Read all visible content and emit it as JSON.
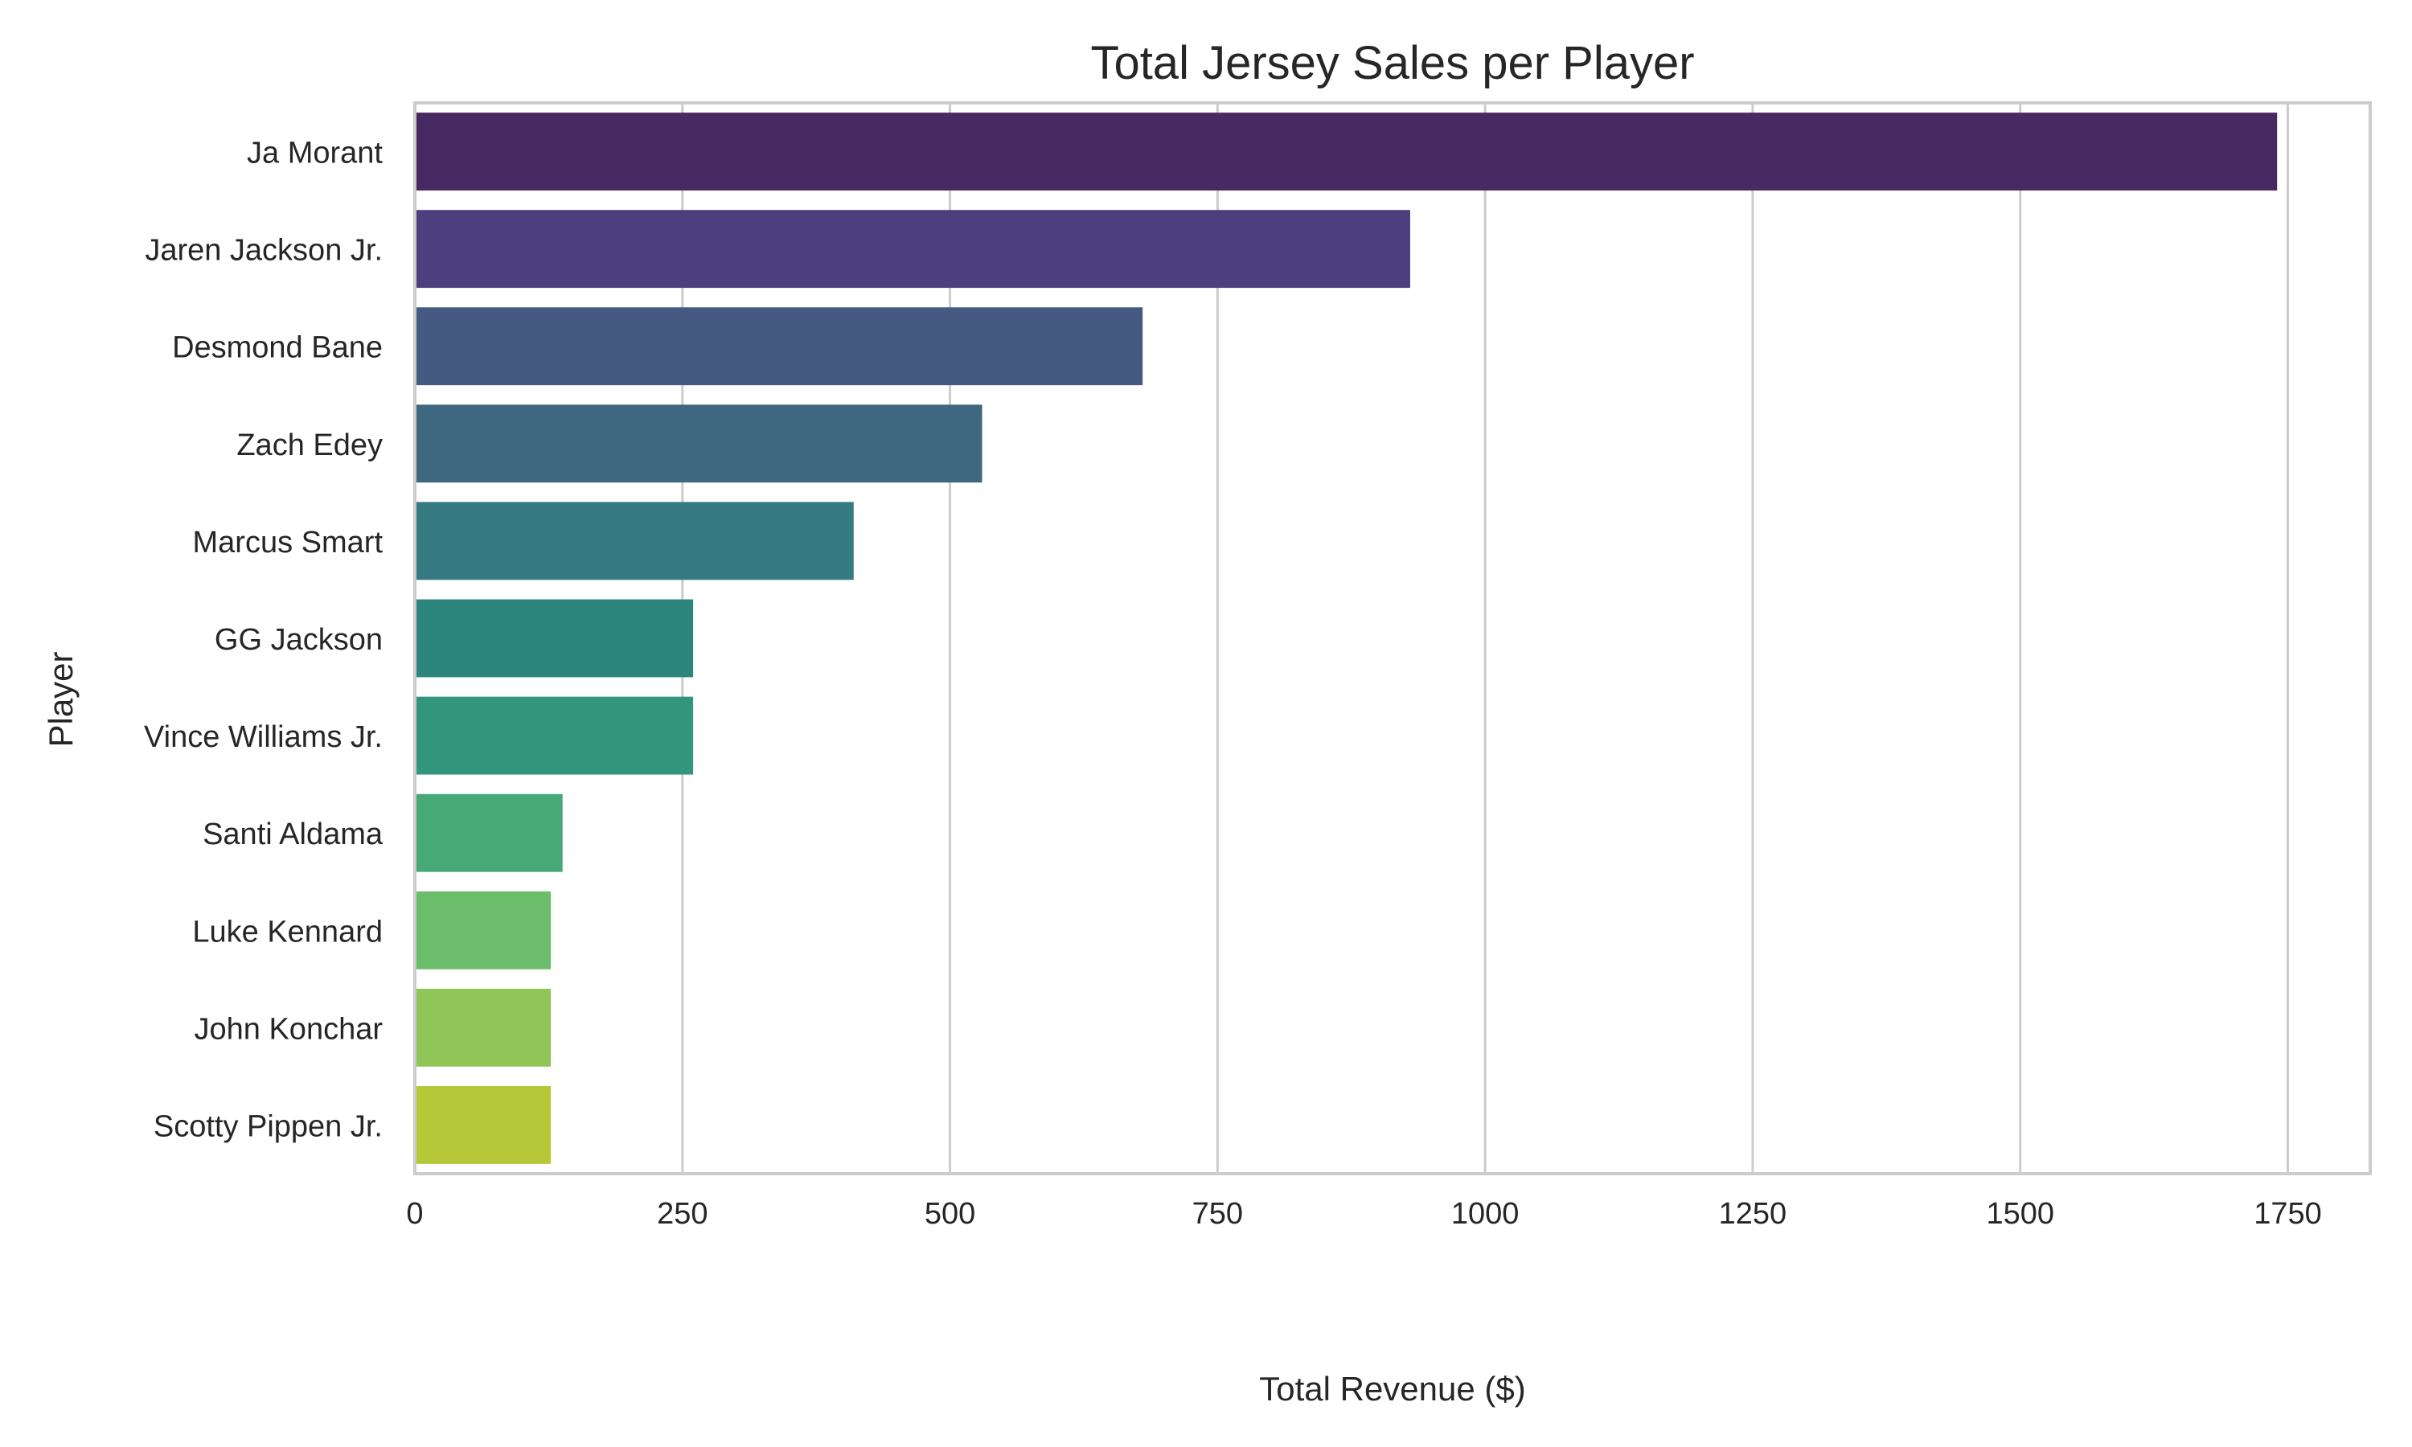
{
  "chart_data": {
    "type": "bar",
    "orientation": "horizontal",
    "title": "Total Jersey Sales per Player",
    "xlabel": "Total Revenue ($)",
    "ylabel": "Player",
    "xlim": [
      0,
      1827
    ],
    "xticks": [
      0,
      250,
      500,
      750,
      1000,
      1250,
      1500,
      1750
    ],
    "grid": true,
    "categories": [
      "Ja Morant",
      "Jaren Jackson Jr.",
      "Desmond Bane",
      "Zach Edey",
      "Marcus Smart",
      "GG Jackson",
      "Vince Williams Jr.",
      "Santi Aldama",
      "Luke Kennard",
      "John Konchar",
      "Scotty Pippen Jr."
    ],
    "values": [
      1740,
      930,
      680,
      530,
      410,
      260,
      260,
      138,
      127,
      127,
      127
    ],
    "colors": [
      "#482a62",
      "#4b3f7d",
      "#445a80",
      "#3e6880",
      "#347a80",
      "#2b857c",
      "#32957c",
      "#47a878",
      "#6bbd6c",
      "#90c558",
      "#b5c938"
    ]
  }
}
